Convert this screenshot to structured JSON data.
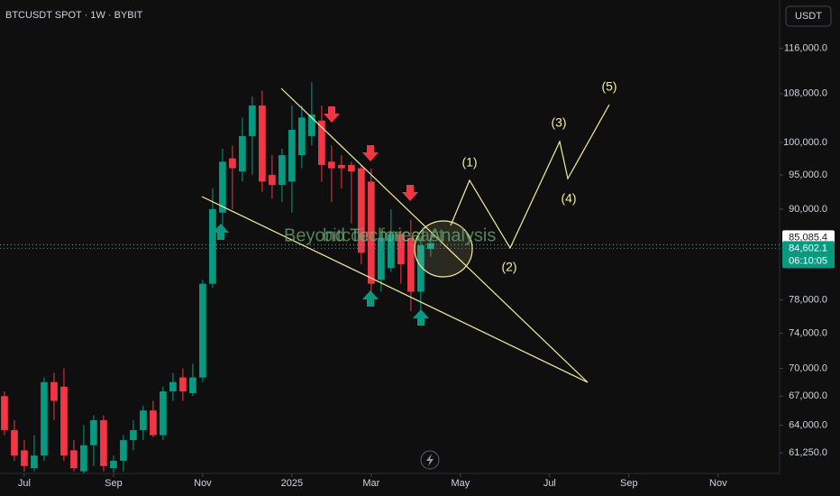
{
  "chart_data": {
    "type": "candlestick",
    "title": "BTCUSDT SPOT · 1W · BYBIT",
    "currency_button": "USDT",
    "log_scale": true,
    "grid": false,
    "up_color": "#089981",
    "down_color": "#f23645",
    "open": [
      67000,
      63500,
      61500,
      59800,
      61000,
      68500,
      68000,
      61500,
      59500,
      62000,
      64500,
      59800,
      60500,
      62500,
      63500,
      65500,
      63000,
      67500,
      69000,
      67300,
      69000,
      80000,
      89500,
      97500,
      95500,
      101000,
      106000,
      95000,
      93500,
      94000,
      98000,
      101000,
      103500,
      97000,
      96500,
      96500,
      96000,
      94000,
      80500,
      82000,
      86500,
      86000,
      79000,
      84500
    ],
    "high": [
      67500,
      64500,
      62500,
      63000,
      69000,
      69500,
      70000,
      62500,
      64000,
      65000,
      65000,
      61000,
      63000,
      64500,
      66000,
      66500,
      68000,
      69500,
      70000,
      70500,
      80500,
      93000,
      99000,
      99500,
      104000,
      107500,
      108500,
      98000,
      99000,
      106000,
      106000,
      110000,
      106000,
      99500,
      98000,
      97000,
      96500,
      96000,
      86500,
      90000,
      87000,
      88500,
      86000,
      86500
    ],
    "low": [
      63000,
      60500,
      59500,
      59500,
      60500,
      64500,
      60500,
      59500,
      59300,
      60000,
      59500,
      59400,
      59500,
      61500,
      62500,
      62800,
      62500,
      66500,
      66500,
      67000,
      68500,
      79500,
      87500,
      90000,
      94000,
      95000,
      92500,
      91500,
      91000,
      89500,
      96000,
      99500,
      94000,
      91000,
      93000,
      88000,
      82500,
      78000,
      79000,
      81500,
      80000,
      76600,
      76500,
      83500
    ],
    "close": [
      63500,
      61000,
      60000,
      61000,
      68500,
      66500,
      61000,
      59800,
      62000,
      64500,
      60000,
      60500,
      62500,
      63500,
      65500,
      63000,
      67500,
      68500,
      67500,
      69000,
      80000,
      90000,
      97000,
      96000,
      101000,
      106000,
      94000,
      93500,
      98000,
      102000,
      104000,
      104500,
      96500,
      96000,
      96000,
      95500,
      84000,
      80000,
      86000,
      86500,
      82500,
      79000,
      85000,
      85300
    ],
    "xlim": [
      -0.45,
      78.2
    ],
    "xticks": [
      {
        "value": 2,
        "label": "Jul"
      },
      {
        "value": 11,
        "label": "Sep"
      },
      {
        "value": 20,
        "label": "Nov"
      },
      {
        "value": 29,
        "label": "2025"
      },
      {
        "value": 37,
        "label": "Mar"
      },
      {
        "value": 46,
        "label": "May"
      },
      {
        "value": 55,
        "label": "Jul"
      },
      {
        "value": 63,
        "label": "Sep"
      },
      {
        "value": 72,
        "label": "Nov"
      }
    ],
    "ylim": [
      59300,
      125200
    ],
    "yticks": [
      {
        "value": 61250,
        "label": "61,250.0"
      },
      {
        "value": 64000,
        "label": "64,000.0"
      },
      {
        "value": 67000,
        "label": "67,000.0"
      },
      {
        "value": 70000,
        "label": "70,000.0"
      },
      {
        "value": 74000,
        "label": "74,000.0"
      },
      {
        "value": 78000,
        "label": "78,000.0"
      },
      {
        "value": 90000,
        "label": "90,000.0"
      },
      {
        "value": 95000,
        "label": "95,000.0"
      },
      {
        "value": 100000,
        "label": "100,000.0"
      },
      {
        "value": 108000,
        "label": "108,000.0"
      },
      {
        "value": 116000,
        "label": "116,000.0"
      }
    ],
    "price_lines": [
      {
        "value": 85085.4,
        "label": "85,085.4"
      },
      {
        "value": 84602.1,
        "label": "84,602.1"
      }
    ],
    "countdown": "06:10:05",
    "annotations": {
      "watermark": "Beyond Technical Analysis",
      "overlay": "bitcoin forecast",
      "waves": [
        "(1)",
        "(2)",
        "(3)",
        "(4)",
        "(5)"
      ]
    }
  }
}
